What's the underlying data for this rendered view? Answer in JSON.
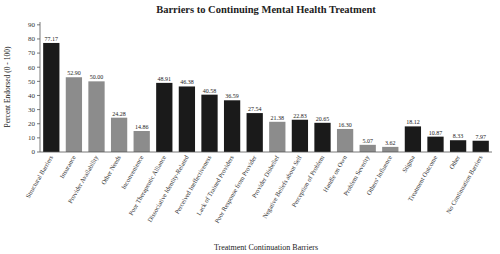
{
  "chart_data": {
    "type": "bar",
    "title": "Barriers to Continuing Mental Health Treatment",
    "x_label": "Treatment Continuation Barriers",
    "y_label": "Percent Endorsed (0 - 100)",
    "categories": [
      "Structural Barriers",
      "Insurance",
      "Provider Availability",
      "Other Needs",
      "Inconvenience",
      "Poor Therapeutic Alliance",
      "Dissociative Identity-Related",
      "Perceived Ineffectiveness",
      "Lack of Trained Providers",
      "Poor Response from Provider",
      "Provider Disbelief",
      "Negative Beliefs about Self",
      "Perception of Problem",
      "Handle on Own",
      "Problem Severity",
      "Others' Influence",
      "Stigma",
      "Treatment Outcome",
      "Other",
      "No Continuation Barriers"
    ],
    "values": [
      77.17,
      52.9,
      50.0,
      24.28,
      14.86,
      48.91,
      46.38,
      40.58,
      36.59,
      27.54,
      21.38,
      22.83,
      20.65,
      16.3,
      5.07,
      3.62,
      18.12,
      10.87,
      8.33,
      7.97
    ],
    "value_labels": [
      "77.17",
      "52.90",
      "50.00",
      "24.28",
      "14.86",
      "48.91",
      "46.38",
      "40.58",
      "36.59",
      "27.54",
      "21.38",
      "22.83",
      "20.65",
      "16.30",
      "5.07",
      "3.62",
      "18.12",
      "10.87",
      "8.33",
      "7.97"
    ],
    "colors": [
      "#1a1a1a",
      "#8c8c8c",
      "#8c8c8c",
      "#8c8c8c",
      "#8c8c8c",
      "#1a1a1a",
      "#1a1a1a",
      "#1a1a1a",
      "#1a1a1a",
      "#1a1a1a",
      "#8c8c8c",
      "#1a1a1a",
      "#1a1a1a",
      "#8c8c8c",
      "#8c8c8c",
      "#8c8c8c",
      "#1a1a1a",
      "#1a1a1a",
      "#1a1a1a",
      "#1a1a1a"
    ],
    "ylim": [
      0,
      92
    ],
    "yticks": [
      0,
      10,
      20,
      30,
      40,
      50,
      60,
      70,
      80,
      90
    ],
    "data_labels": true,
    "grid": false
  }
}
